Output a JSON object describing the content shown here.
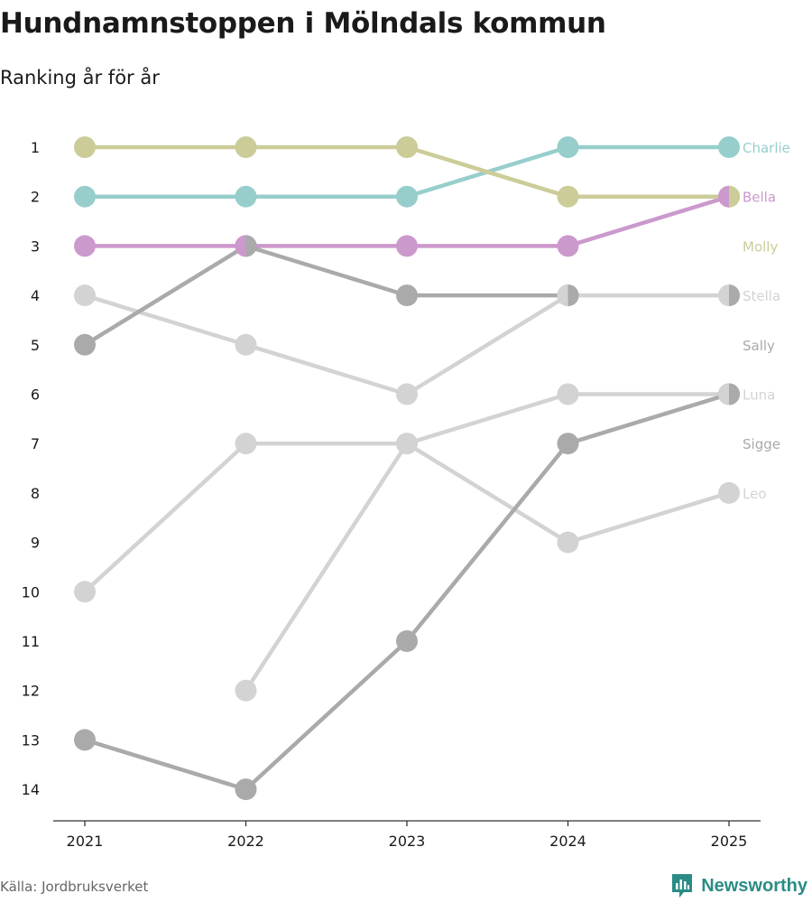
{
  "header": {
    "title": "Hundnamnstoppen i Mölndals kommun",
    "subtitle": "Ranking år för år"
  },
  "footer": {
    "source": "Källa: Jordbruksverket",
    "brand": "Newsworthy",
    "brand_color": "#2a8c85"
  },
  "chart_data": {
    "type": "line",
    "title": "Hundnamnstoppen i Mölndals kommun",
    "subtitle": "Ranking år för år",
    "xlabel": "",
    "ylabel": "",
    "x": [
      "2021",
      "2022",
      "2023",
      "2024",
      "2025"
    ],
    "y_ticks": [
      "1",
      "2",
      "3",
      "4",
      "5",
      "6",
      "7",
      "8",
      "9",
      "10",
      "11",
      "12",
      "13",
      "14"
    ],
    "ylim": [
      1,
      14
    ],
    "y_inverted": true,
    "grid": false,
    "series": [
      {
        "name": "Charlie",
        "values": [
          2,
          2,
          2,
          1,
          1
        ],
        "color": "#97cecc",
        "label_color": "#97cecc",
        "half_dot_color": null
      },
      {
        "name": "Bella",
        "values": [
          3,
          3,
          3,
          3,
          2
        ],
        "color": "#cc99cc",
        "label_color": "#cc99cc",
        "half_dot_color": null
      },
      {
        "name": "Molly",
        "values": [
          1,
          1,
          1,
          2,
          2
        ],
        "color": "#cccc99",
        "label_color": "#cccc99",
        "half_dot_color": "#cc99cc"
      },
      {
        "name": "Stella",
        "values": [
          4,
          5,
          6,
          4,
          4
        ],
        "color": "#d3d3d3",
        "label_color": "#d3d3d3",
        "half_dot_color": null
      },
      {
        "name": "Sally",
        "values": [
          5,
          3,
          4,
          4,
          null
        ],
        "color": "#aaaaaa",
        "label_color": "#aaaaaa",
        "half_dot_color": "#d3d3d3"
      },
      {
        "name": "Luna",
        "values": [
          10,
          7,
          7,
          6,
          6
        ],
        "color": "#d3d3d3",
        "label_color": "#d3d3d3",
        "half_dot_color": null
      },
      {
        "name": "Sigge",
        "values": [
          13,
          14,
          11,
          7,
          6
        ],
        "color": "#aaaaaa",
        "label_color": "#aaaaaa",
        "half_dot_color": "#d3d3d3"
      },
      {
        "name": "Leo",
        "values": [
          null,
          12,
          7,
          9,
          8
        ],
        "color": "#d3d3d3",
        "label_color": "#d3d3d3",
        "half_dot_color": null
      }
    ],
    "end_labels": [
      {
        "name": "Charlie",
        "rank": 1,
        "color": "#97cecc"
      },
      {
        "name": "Bella",
        "rank": 2,
        "color": "#cc99cc"
      },
      {
        "name": "Molly",
        "rank": 3,
        "color": "#cccc99"
      },
      {
        "name": "Stella",
        "rank": 4,
        "color": "#d3d3d3"
      },
      {
        "name": "Sally",
        "rank": 5,
        "color": "#aaaaaa"
      },
      {
        "name": "Luna",
        "rank": 6,
        "color": "#d3d3d3"
      },
      {
        "name": "Sigge",
        "rank": 7,
        "color": "#aaaaaa"
      },
      {
        "name": "Leo",
        "rank": 8,
        "color": "#d3d3d3"
      }
    ],
    "half_dots": [
      {
        "series": "Bella",
        "x_index": 4,
        "left_color": "#cc99cc",
        "right_color": "#cccc99"
      },
      {
        "series": "Bella",
        "x_index": 1,
        "left_color": "#cc99cc",
        "right_color": "#aaaaaa"
      },
      {
        "series": "Stella",
        "x_index": 3,
        "left_color": "#d3d3d3",
        "right_color": "#aaaaaa"
      },
      {
        "series": "Stella",
        "x_index": 4,
        "left_color": "#d3d3d3",
        "right_color": "#aaaaaa"
      },
      {
        "series": "Luna",
        "x_index": 4,
        "left_color": "#d3d3d3",
        "right_color": "#aaaaaa"
      }
    ]
  }
}
